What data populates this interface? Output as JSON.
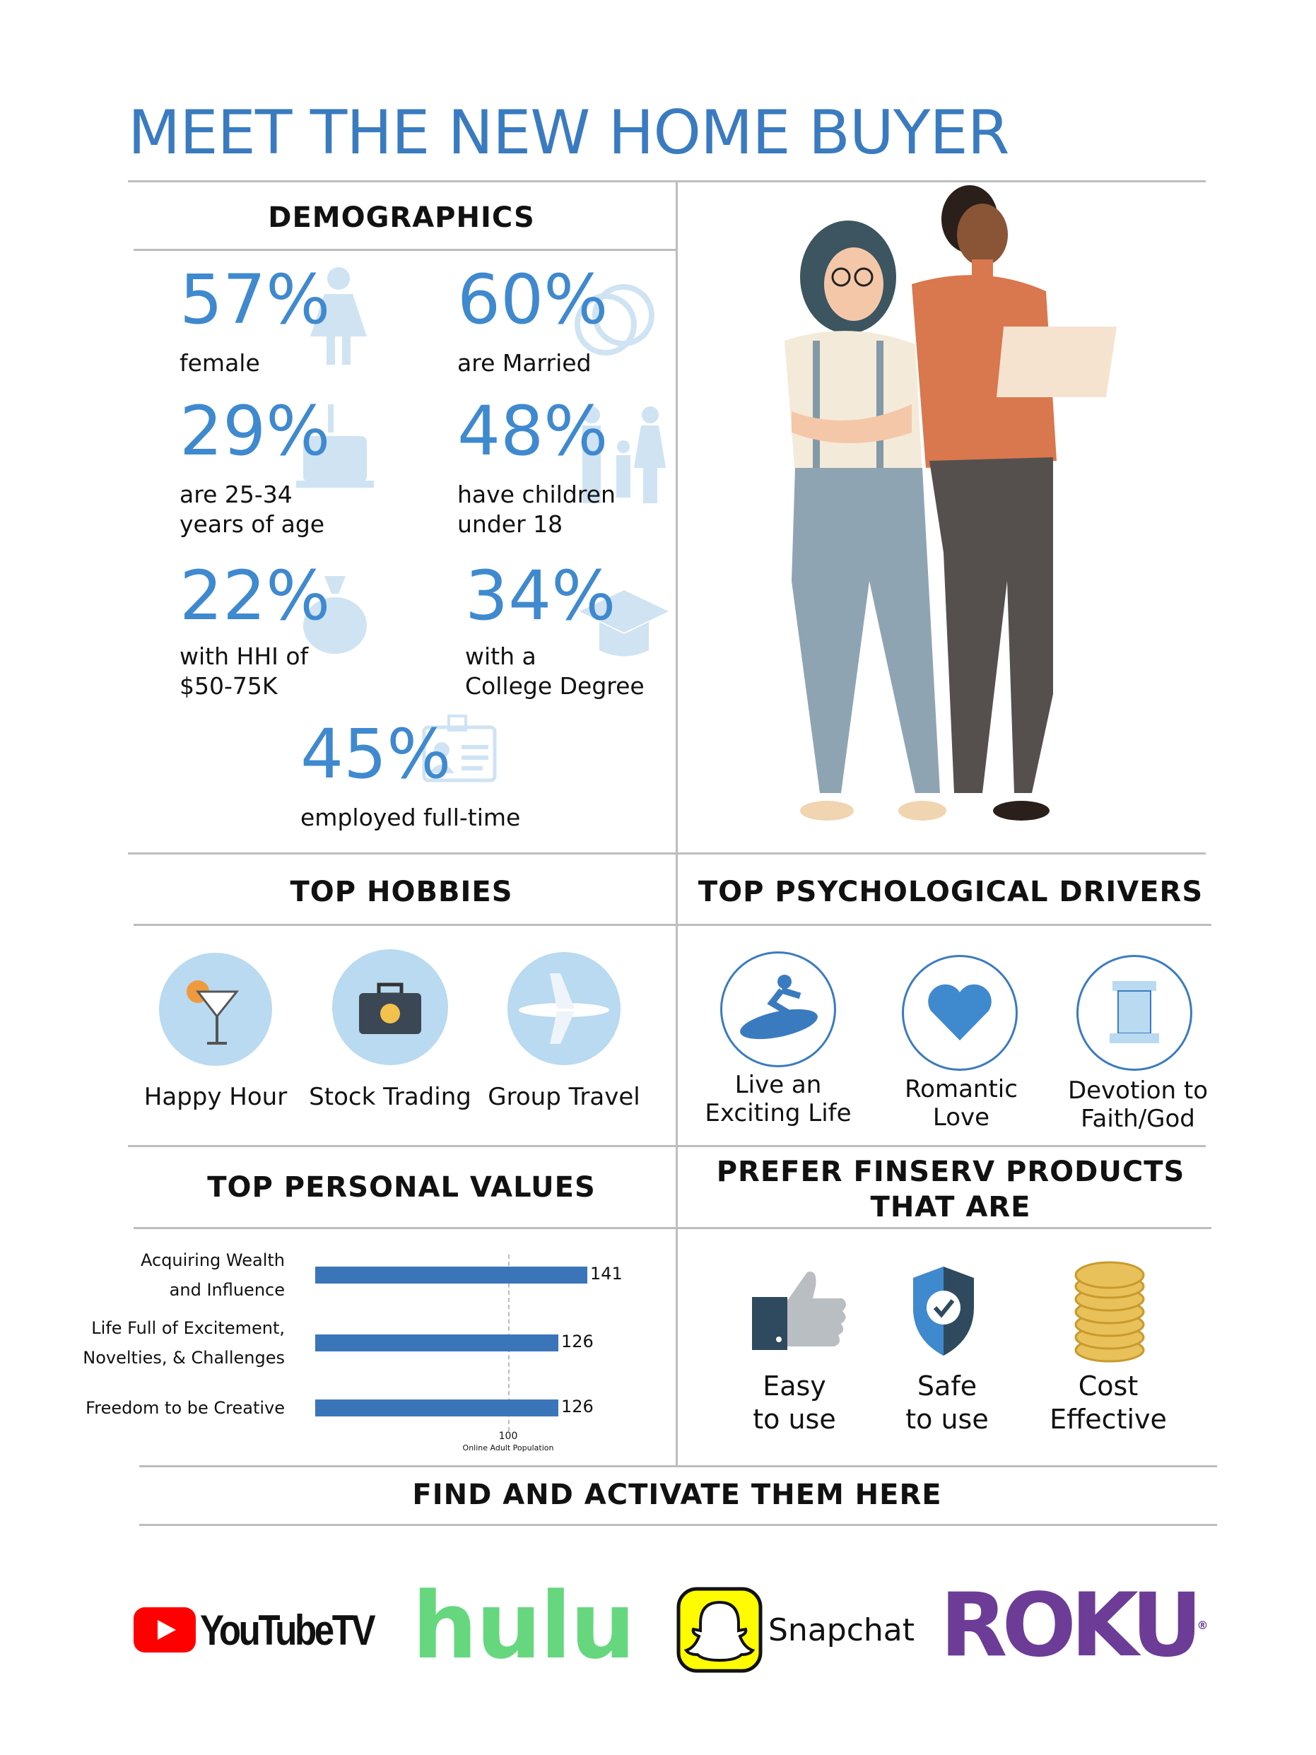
{
  "title": "MEET THE NEW HOME BUYER",
  "demographics": {
    "header": "DEMOGRAPHICS",
    "stats": [
      {
        "value": "57%",
        "label": [
          "female"
        ],
        "icon": "woman-icon"
      },
      {
        "value": "60%",
        "label": [
          "are Married"
        ],
        "icon": "rings-icon"
      },
      {
        "value": "29%",
        "label": [
          "are 25-34",
          "years of age"
        ],
        "icon": "cake-icon"
      },
      {
        "value": "48%",
        "label": [
          "have children",
          "under 18"
        ],
        "icon": "family-icon"
      },
      {
        "value": "22%",
        "label": [
          "with HHI of",
          "$50-75K"
        ],
        "icon": "money-bag-icon"
      },
      {
        "value": "34%",
        "label": [
          "with a",
          "College Degree"
        ],
        "icon": "graduation-cap-icon"
      },
      {
        "value": "45%",
        "label": [
          "employed full-time"
        ],
        "icon": "id-card-icon"
      }
    ]
  },
  "hobbies": {
    "header": "TOP HOBBIES",
    "items": [
      {
        "label": "Happy Hour",
        "icon": "cocktail-icon"
      },
      {
        "label": "Stock Trading",
        "icon": "briefcase-icon"
      },
      {
        "label": "Group Travel",
        "icon": "airplane-icon"
      }
    ]
  },
  "drivers": {
    "header": "TOP PSYCHOLOGICAL DRIVERS",
    "items": [
      {
        "label": [
          "Live an",
          "Exciting Life"
        ],
        "icon": "surfer-icon"
      },
      {
        "label": [
          "Romantic",
          "Love"
        ],
        "icon": "heart-icon"
      },
      {
        "label": [
          "Devotion to",
          "Faith/God"
        ],
        "icon": "column-icon"
      }
    ]
  },
  "values": {
    "header": "TOP PERSONAL VALUES"
  },
  "chart_data": {
    "type": "bar",
    "orientation": "horizontal",
    "categories": [
      [
        "Acquiring Wealth",
        "and Influence"
      ],
      [
        "Life Full of Excitement,",
        "Novelties, & Challenges"
      ],
      [
        "Freedom to be Creative"
      ]
    ],
    "values": [
      141,
      126,
      126
    ],
    "reference_line": {
      "value": 100,
      "label": "100",
      "sublabel": "Online Adult Population"
    },
    "bar_color": "#3a75b9"
  },
  "finserv": {
    "header": [
      "PREFER FINSERV PRODUCTS",
      "THAT ARE"
    ],
    "items": [
      {
        "label": [
          "Easy",
          "to use"
        ],
        "icon": "thumbs-up-icon"
      },
      {
        "label": [
          "Safe",
          "to use"
        ],
        "icon": "shield-check-icon"
      },
      {
        "label": [
          "Cost",
          "Effective"
        ],
        "icon": "coins-icon"
      }
    ]
  },
  "activate": {
    "header": "FIND AND ACTIVATE THEM HERE",
    "logos": [
      {
        "name": "YouTubeTV",
        "color": "#ff0000"
      },
      {
        "name": "hulu",
        "color": "#66d77e"
      },
      {
        "name": "Snapchat",
        "color": "#fffc00"
      },
      {
        "name": "Roku",
        "color": "#6c3c97"
      }
    ]
  },
  "colors": {
    "accent": "#3a7bc0",
    "light_icon": "#cfe3f3",
    "circle_bg": "#b9daf0"
  }
}
